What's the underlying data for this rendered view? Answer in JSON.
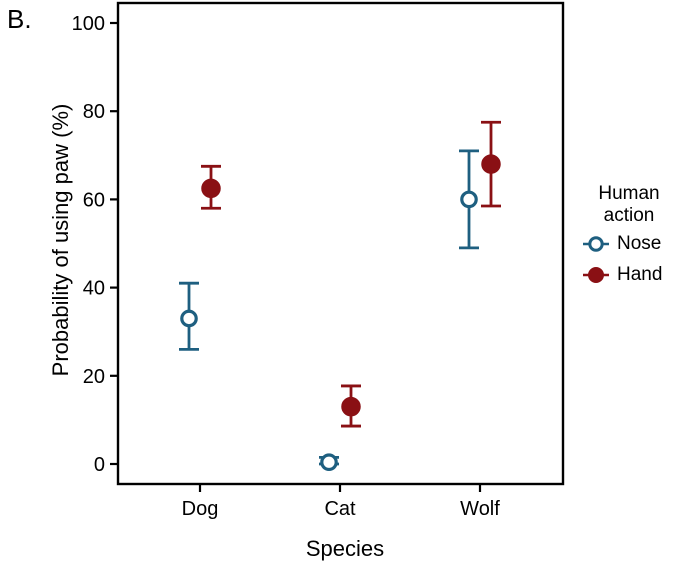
{
  "panel_label": "B.",
  "colors": {
    "nose": "#1E5F80",
    "hand": "#8A1014",
    "axis": "#000000",
    "background": "#FFFFFF"
  },
  "chart_data": {
    "type": "scatter",
    "subtype": "pointrange-with-error-bars",
    "title": "",
    "xlabel": "Species",
    "ylabel": "Probability of using paw (%)",
    "categories": [
      "Dog",
      "Cat",
      "Wolf"
    ],
    "y_ticks": [
      0,
      20,
      40,
      60,
      80,
      100
    ],
    "ylim": [
      0,
      100
    ],
    "grid": false,
    "legend": {
      "title": "Human action",
      "position": "right"
    },
    "series": [
      {
        "name": "Nose",
        "marker": "open-circle",
        "color": "#1E5F80",
        "values": [
          33,
          0.4,
          60
        ],
        "ci_low": [
          26,
          0,
          49
        ],
        "ci_high": [
          41,
          1.5,
          71
        ]
      },
      {
        "name": "Hand",
        "marker": "filled-circle",
        "color": "#8A1014",
        "values": [
          62.5,
          13,
          68
        ],
        "ci_low": [
          58,
          8.6,
          58.5
        ],
        "ci_high": [
          67.5,
          17.7,
          77.5
        ]
      }
    ]
  }
}
